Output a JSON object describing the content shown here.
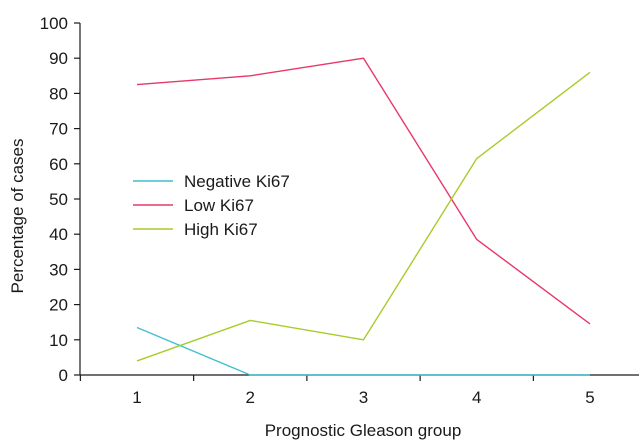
{
  "chart_data": {
    "type": "line",
    "xlabel": "Prognostic Gleason group",
    "ylabel": "Percentage of cases",
    "x": [
      "1",
      "2",
      "3",
      "4",
      "5"
    ],
    "ylim": [
      0,
      100
    ],
    "yticks": [
      "0",
      "10",
      "20",
      "30",
      "40",
      "50",
      "60",
      "70",
      "80",
      "90",
      "100"
    ],
    "grid": false,
    "legend_placement": "center-left",
    "series": [
      {
        "name": "Negative Ki67",
        "color": "#3fbfcf",
        "values": [
          13.5,
          0,
          0,
          0,
          0
        ]
      },
      {
        "name": "Low Ki67",
        "color": "#e8386a",
        "values": [
          82.5,
          85,
          90,
          38.5,
          14.5
        ]
      },
      {
        "name": "High Ki67",
        "color": "#a8cc2a",
        "values": [
          4,
          15.5,
          10,
          61.5,
          86
        ]
      }
    ]
  }
}
